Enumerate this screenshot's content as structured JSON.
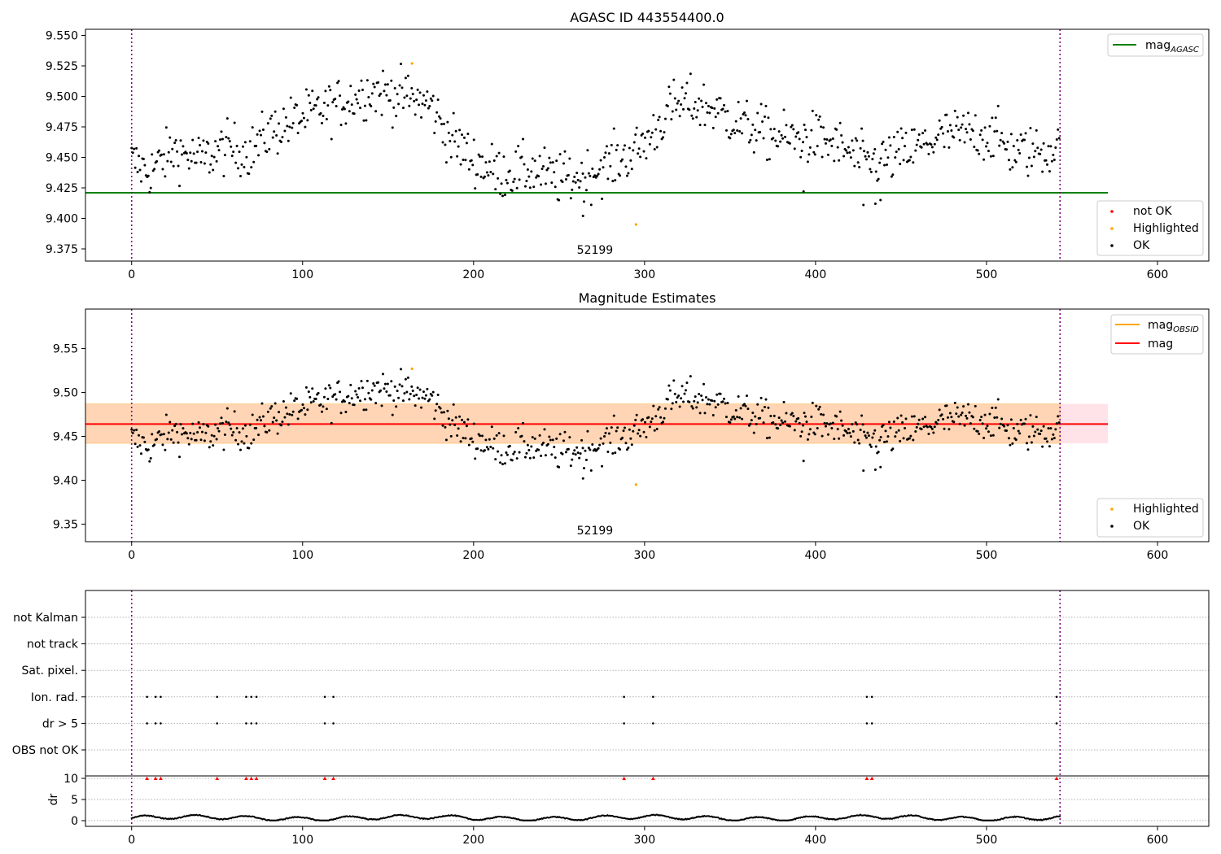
{
  "chart_data": [
    {
      "type": "scatter",
      "title": "AGASC ID 443554400.0",
      "annotation": "52199",
      "xlim": [
        -27,
        630
      ],
      "ylim": [
        9.365,
        9.555
      ],
      "xticks": [
        0,
        100,
        200,
        300,
        400,
        500,
        600
      ],
      "yticks": [
        9.375,
        9.4,
        9.425,
        9.45,
        9.475,
        9.5,
        9.525,
        9.55
      ],
      "ytick_labels": [
        "9.375",
        "9.400",
        "9.425",
        "9.450",
        "9.475",
        "9.500",
        "9.525",
        "9.550"
      ],
      "vlines": [
        0,
        543
      ],
      "hline": {
        "name": "mag",
        "sub": "AGASC",
        "value": 9.421,
        "x_range": [
          -27,
          571
        ],
        "color": "#008000"
      },
      "legend_top": [
        {
          "label": "mag",
          "sub": "AGASC",
          "color": "#008000"
        }
      ],
      "legend_bottom": [
        {
          "label": "not OK",
          "color": "#ff0000"
        },
        {
          "label": "Highlighted",
          "color": "#ffa500"
        },
        {
          "label": "OK",
          "color": "#000000"
        }
      ],
      "highlighted_points": [
        [
          164,
          9.527
        ],
        [
          295,
          9.395
        ]
      ],
      "series_profile": [
        [
          0,
          9.447
        ],
        [
          10,
          9.438
        ],
        [
          25,
          9.456
        ],
        [
          40,
          9.448
        ],
        [
          55,
          9.458
        ],
        [
          70,
          9.455
        ],
        [
          80,
          9.47
        ],
        [
          95,
          9.48
        ],
        [
          110,
          9.488
        ],
        [
          125,
          9.496
        ],
        [
          140,
          9.505
        ],
        [
          160,
          9.5
        ],
        [
          175,
          9.493
        ],
        [
          185,
          9.468
        ],
        [
          200,
          9.448
        ],
        [
          215,
          9.437
        ],
        [
          235,
          9.44
        ],
        [
          250,
          9.432
        ],
        [
          265,
          9.435
        ],
        [
          280,
          9.445
        ],
        [
          295,
          9.455
        ],
        [
          305,
          9.47
        ],
        [
          315,
          9.49
        ],
        [
          325,
          9.495
        ],
        [
          340,
          9.49
        ],
        [
          355,
          9.478
        ],
        [
          370,
          9.47
        ],
        [
          385,
          9.465
        ],
        [
          400,
          9.466
        ],
        [
          415,
          9.458
        ],
        [
          430,
          9.445
        ],
        [
          445,
          9.45
        ],
        [
          460,
          9.458
        ],
        [
          475,
          9.468
        ],
        [
          490,
          9.47
        ],
        [
          505,
          9.468
        ],
        [
          515,
          9.455
        ],
        [
          530,
          9.455
        ],
        [
          543,
          9.458
        ]
      ]
    },
    {
      "type": "scatter",
      "title": "Magnitude Estimates",
      "annotation": "52199",
      "xlim": [
        -27,
        630
      ],
      "ylim": [
        9.33,
        9.595
      ],
      "xticks": [
        0,
        100,
        200,
        300,
        400,
        500,
        600
      ],
      "yticks": [
        9.35,
        9.4,
        9.45,
        9.5,
        9.55
      ],
      "ytick_labels": [
        "9.35",
        "9.40",
        "9.45",
        "9.50",
        "9.55"
      ],
      "vlines": [
        0,
        543
      ],
      "mag_line": {
        "value": 9.464,
        "x_range": [
          -27,
          571
        ],
        "color": "#ff0000"
      },
      "mag_band": {
        "lo": 9.442,
        "hi": 9.487,
        "x_range": [
          -27,
          571
        ],
        "obsid_x_range": [
          -27,
          543
        ]
      },
      "legend_top": [
        {
          "label": "mag",
          "sub": "OBSID",
          "color": "#ffa500"
        },
        {
          "label": "mag",
          "sub": "",
          "color": "#ff0000"
        }
      ],
      "legend_bottom": [
        {
          "label": "Highlighted",
          "color": "#ffa500"
        },
        {
          "label": "OK",
          "color": "#000000"
        }
      ],
      "highlighted_points": [
        [
          164,
          9.527
        ],
        [
          295,
          9.395
        ]
      ]
    },
    {
      "type": "scatter",
      "title": "",
      "xlim": [
        -27,
        630
      ],
      "xticks": [
        0,
        100,
        200,
        300,
        400,
        500,
        600
      ],
      "flag_rows": [
        "not Kalman",
        "not track",
        "Sat. pixel.",
        "Ion. rad.",
        "dr > 5",
        "OBS not OK"
      ],
      "flag_events_x": [
        9,
        14,
        17,
        50,
        67,
        70,
        73,
        113,
        118,
        288,
        305,
        430,
        433,
        541
      ],
      "flag_event_rows": [
        "Ion. rad.",
        "dr > 5"
      ],
      "dr_label": "dr",
      "dr_ylim": [
        -0.5,
        11
      ],
      "dr_yticks": [
        0,
        5,
        10
      ],
      "dr_ytick_labels": [
        "0",
        "5",
        "10"
      ],
      "vlines": [
        0,
        543
      ]
    }
  ]
}
